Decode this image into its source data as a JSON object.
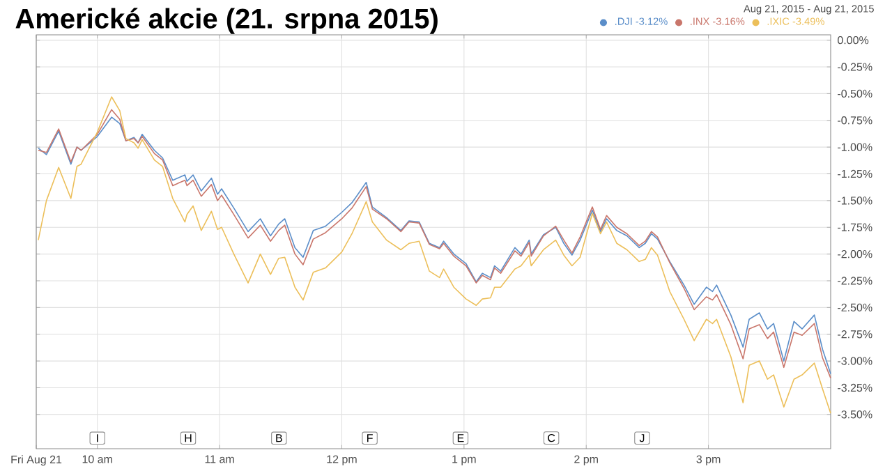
{
  "chart_data": {
    "type": "line",
    "title": "Americké akcie (21. srpna 2015)",
    "subtitle": "Aug 21, 2015  -  Aug 21, 2015",
    "x": [
      "2015-08-21T09:31",
      "2015-08-21T09:35",
      "2015-08-21T09:41",
      "2015-08-21T09:47",
      "2015-08-21T09:50",
      "2015-08-21T09:52",
      "2015-08-21T10:00",
      "2015-08-21T10:07",
      "2015-08-21T10:11",
      "2015-08-21T10:14",
      "2015-08-21T10:18",
      "2015-08-21T10:20",
      "2015-08-21T10:22",
      "2015-08-21T10:28",
      "2015-08-21T10:32",
      "2015-08-21T10:37",
      "2015-08-21T10:43",
      "2015-08-21T10:44",
      "2015-08-21T10:47",
      "2015-08-21T10:51",
      "2015-08-21T10:56",
      "2015-08-21T10:59",
      "2015-08-21T11:01",
      "2015-08-21T11:07",
      "2015-08-21T11:14",
      "2015-08-21T11:20",
      "2015-08-21T11:25",
      "2015-08-21T11:29",
      "2015-08-21T11:32",
      "2015-08-21T11:37",
      "2015-08-21T11:41",
      "2015-08-21T11:46",
      "2015-08-21T11:52",
      "2015-08-21T12:00",
      "2015-08-21T12:05",
      "2015-08-21T12:12",
      "2015-08-21T12:15",
      "2015-08-21T12:22",
      "2015-08-21T12:29",
      "2015-08-21T12:33",
      "2015-08-21T12:38",
      "2015-08-21T12:43",
      "2015-08-21T12:48",
      "2015-08-21T12:50",
      "2015-08-21T12:55",
      "2015-08-21T13:01",
      "2015-08-21T13:06",
      "2015-08-21T13:09",
      "2015-08-21T13:13",
      "2015-08-21T13:15",
      "2015-08-21T13:18",
      "2015-08-21T13:25",
      "2015-08-21T13:28",
      "2015-08-21T13:32",
      "2015-08-21T13:33",
      "2015-08-21T13:39",
      "2015-08-21T13:45",
      "2015-08-21T13:49",
      "2015-08-21T13:53",
      "2015-08-21T13:57",
      "2015-08-21T14:03",
      "2015-08-21T14:07",
      "2015-08-21T14:10",
      "2015-08-21T14:15",
      "2015-08-21T14:20",
      "2015-08-21T14:26",
      "2015-08-21T14:29",
      "2015-08-21T14:32",
      "2015-08-21T14:35",
      "2015-08-21T14:41",
      "2015-08-21T14:48",
      "2015-08-21T14:53",
      "2015-08-21T14:59",
      "2015-08-21T15:02",
      "2015-08-21T15:04",
      "2015-08-21T15:11",
      "2015-08-21T15:17",
      "2015-08-21T15:20",
      "2015-08-21T15:25",
      "2015-08-21T15:29",
      "2015-08-21T15:32",
      "2015-08-21T15:37",
      "2015-08-21T15:42",
      "2015-08-21T15:46",
      "2015-08-21T15:52",
      "2015-08-21T15:56",
      "2015-08-21T16:00"
    ],
    "series": [
      {
        "name": ".DJI -3.12%",
        "color": "#5b8ec9",
        "values": [
          -1.01,
          -1.07,
          -0.85,
          -1.16,
          -1.0,
          -1.03,
          -0.9,
          -0.72,
          -0.78,
          -0.94,
          -0.91,
          -0.96,
          -0.88,
          -1.03,
          -1.1,
          -1.31,
          -1.26,
          -1.32,
          -1.26,
          -1.41,
          -1.29,
          -1.44,
          -1.39,
          -1.57,
          -1.79,
          -1.67,
          -1.83,
          -1.72,
          -1.67,
          -1.94,
          -2.03,
          -1.78,
          -1.74,
          -1.61,
          -1.52,
          -1.33,
          -1.56,
          -1.66,
          -1.78,
          -1.69,
          -1.7,
          -1.9,
          -1.94,
          -1.88,
          -2.0,
          -2.09,
          -2.26,
          -2.18,
          -2.22,
          -2.11,
          -2.16,
          -1.94,
          -2.0,
          -1.87,
          -2.0,
          -1.82,
          -1.75,
          -1.9,
          -2.01,
          -1.87,
          -1.59,
          -1.79,
          -1.67,
          -1.78,
          -1.83,
          -1.94,
          -1.9,
          -1.81,
          -1.86,
          -2.07,
          -2.29,
          -2.47,
          -2.31,
          -2.35,
          -2.29,
          -2.57,
          -2.87,
          -2.61,
          -2.55,
          -2.7,
          -2.65,
          -3.0,
          -2.63,
          -2.7,
          -2.57,
          -2.89,
          -3.12
        ]
      },
      {
        "name": ".INX -3.16%",
        "color": "#c9766b",
        "values": [
          -1.03,
          -1.05,
          -0.83,
          -1.14,
          -1.0,
          -1.03,
          -0.88,
          -0.65,
          -0.74,
          -0.94,
          -0.92,
          -0.96,
          -0.9,
          -1.06,
          -1.12,
          -1.36,
          -1.31,
          -1.36,
          -1.31,
          -1.46,
          -1.35,
          -1.5,
          -1.45,
          -1.63,
          -1.85,
          -1.73,
          -1.88,
          -1.78,
          -1.73,
          -2.0,
          -2.1,
          -1.86,
          -1.8,
          -1.67,
          -1.57,
          -1.37,
          -1.58,
          -1.67,
          -1.79,
          -1.7,
          -1.71,
          -1.91,
          -1.95,
          -1.9,
          -2.02,
          -2.11,
          -2.27,
          -2.2,
          -2.24,
          -2.13,
          -2.18,
          -1.97,
          -2.02,
          -1.89,
          -2.02,
          -1.83,
          -1.74,
          -1.87,
          -1.99,
          -1.84,
          -1.56,
          -1.77,
          -1.64,
          -1.75,
          -1.81,
          -1.92,
          -1.88,
          -1.79,
          -1.84,
          -2.08,
          -2.32,
          -2.52,
          -2.4,
          -2.43,
          -2.38,
          -2.66,
          -2.98,
          -2.7,
          -2.66,
          -2.79,
          -2.73,
          -3.06,
          -2.73,
          -2.76,
          -2.65,
          -2.97,
          -3.16
        ]
      },
      {
        "name": ".IXIC -3.49%",
        "color": "#ecbf5a",
        "values": [
          -1.87,
          -1.5,
          -1.19,
          -1.48,
          -1.18,
          -1.16,
          -0.86,
          -0.53,
          -0.66,
          -0.92,
          -0.96,
          -1.01,
          -0.93,
          -1.12,
          -1.18,
          -1.48,
          -1.7,
          -1.63,
          -1.55,
          -1.78,
          -1.6,
          -1.77,
          -1.75,
          -2.0,
          -2.27,
          -2.0,
          -2.19,
          -2.04,
          -2.03,
          -2.31,
          -2.43,
          -2.17,
          -2.13,
          -1.98,
          -1.81,
          -1.51,
          -1.7,
          -1.87,
          -1.96,
          -1.9,
          -1.88,
          -2.16,
          -2.22,
          -2.14,
          -2.31,
          -2.42,
          -2.48,
          -2.42,
          -2.41,
          -2.31,
          -2.31,
          -2.14,
          -2.11,
          -2.01,
          -2.11,
          -1.96,
          -1.87,
          -2.01,
          -2.11,
          -2.03,
          -1.62,
          -1.81,
          -1.7,
          -1.9,
          -1.96,
          -2.07,
          -2.05,
          -1.94,
          -2.01,
          -2.35,
          -2.61,
          -2.81,
          -2.61,
          -2.65,
          -2.61,
          -2.96,
          -3.39,
          -3.04,
          -3.0,
          -3.17,
          -3.13,
          -3.43,
          -3.17,
          -3.13,
          -3.02,
          -3.26,
          -3.49
        ]
      }
    ],
    "xlim": [
      "2015-08-21T09:30",
      "2015-08-21T16:00"
    ],
    "ylim": [
      -3.82,
      0.05
    ],
    "xticks": [
      {
        "value": "2015-08-21T09:30",
        "label": "Fri Aug 21"
      },
      {
        "value": "2015-08-21T10:00",
        "label": "10 am"
      },
      {
        "value": "2015-08-21T11:00",
        "label": "11 am"
      },
      {
        "value": "2015-08-21T12:00",
        "label": "12 pm"
      },
      {
        "value": "2015-08-21T13:00",
        "label": "1 pm"
      },
      {
        "value": "2015-08-21T14:00",
        "label": "2 pm"
      },
      {
        "value": "2015-08-21T15:00",
        "label": "3 pm"
      }
    ],
    "yticks": [
      {
        "value": 0,
        "label": "0.00%"
      },
      {
        "value": -0.25,
        "label": "-0.25%"
      },
      {
        "value": -0.5,
        "label": "-0.50%"
      },
      {
        "value": -0.75,
        "label": "-0.75%"
      },
      {
        "value": -1.0,
        "label": "-1.00%"
      },
      {
        "value": -1.25,
        "label": "-1.25%"
      },
      {
        "value": -1.5,
        "label": "-1.50%"
      },
      {
        "value": -1.75,
        "label": "-1.75%"
      },
      {
        "value": -2.0,
        "label": "-2.00%"
      },
      {
        "value": -2.25,
        "label": "-2.25%"
      },
      {
        "value": -2.5,
        "label": "-2.50%"
      },
      {
        "value": -2.75,
        "label": "-2.75%"
      },
      {
        "value": -3.0,
        "label": "-3.00%"
      },
      {
        "value": -3.25,
        "label": "-3.25%"
      },
      {
        "value": -3.5,
        "label": "-3.50%"
      }
    ],
    "annotations": [
      "I",
      "H",
      "B",
      "F",
      "E",
      "C",
      "J"
    ],
    "grid": true,
    "legend": "top right",
    "marker": "none",
    "line_style": "solid"
  }
}
